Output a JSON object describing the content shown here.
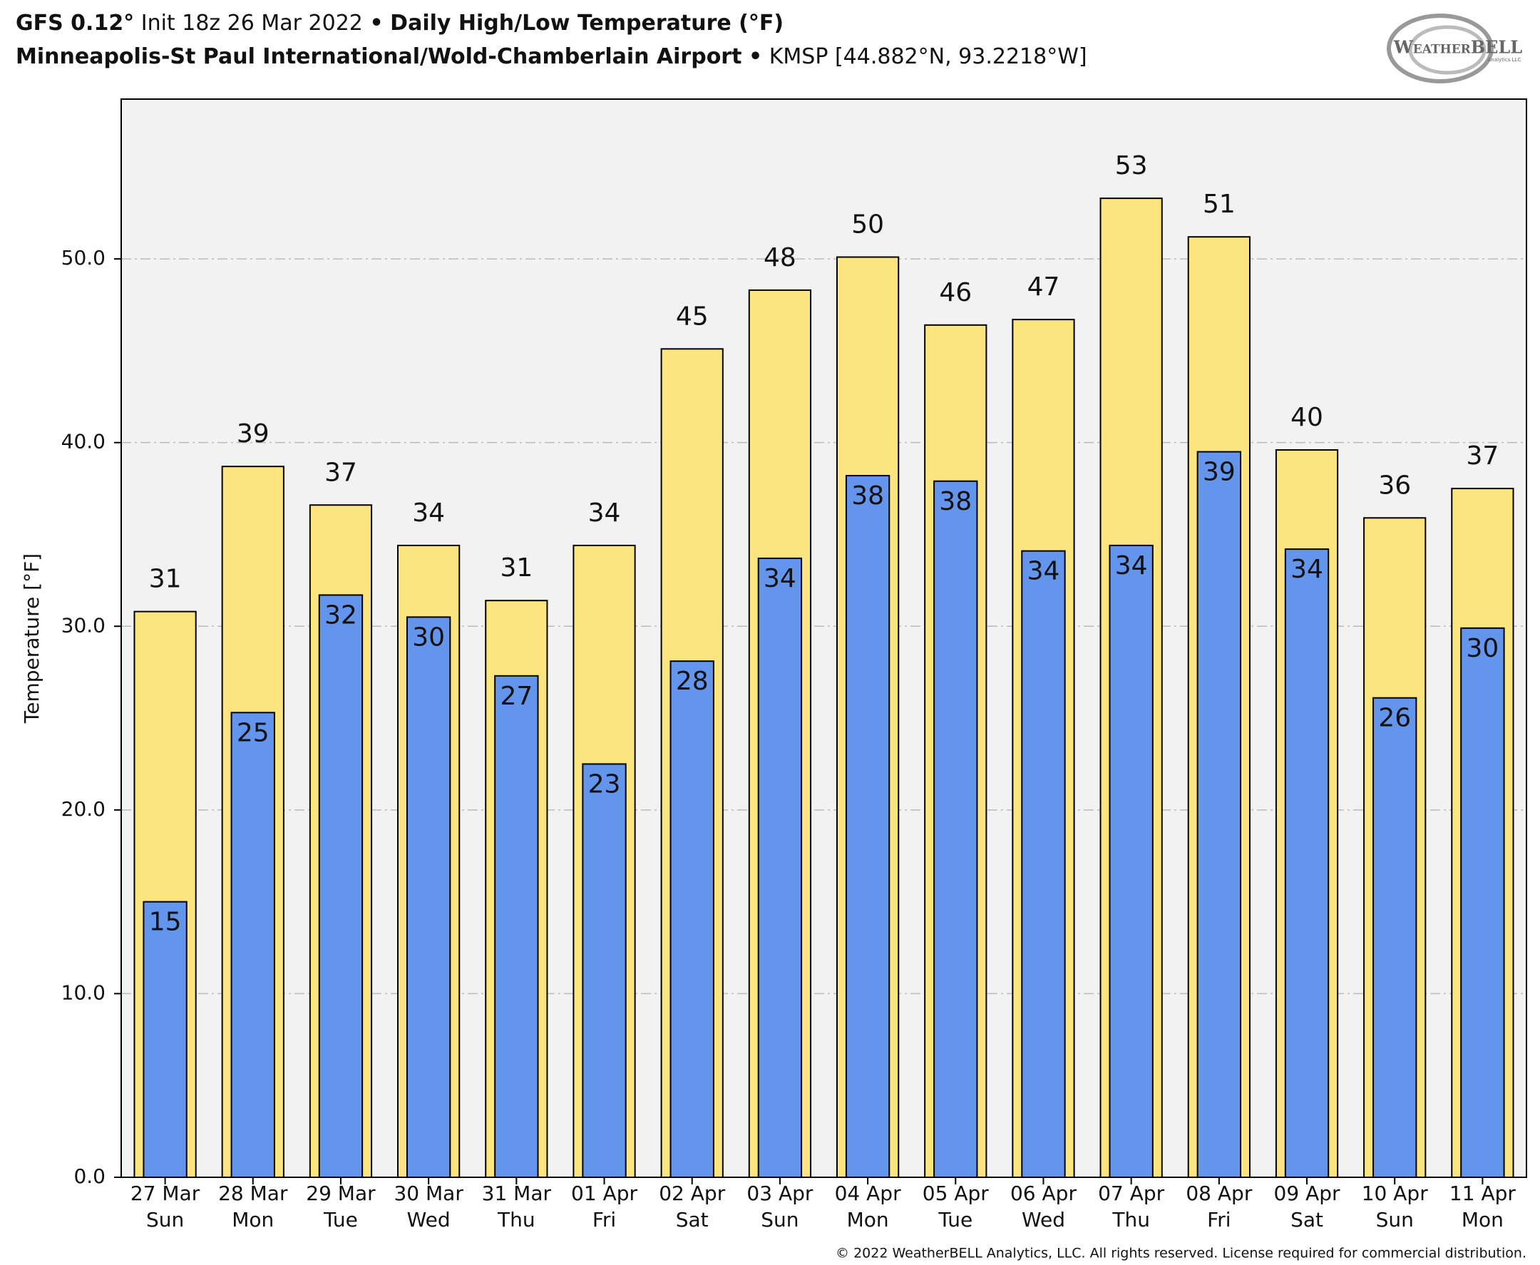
{
  "chart_data": {
    "type": "bar",
    "title": {
      "model": "GFS 0.12°",
      "init": "Init 18z 26 Mar 2022",
      "separator": "•",
      "product": "Daily High/Low Temperature (°F)"
    },
    "subtitle": {
      "station": "Minneapolis-St Paul International/Wold-Chamberlain Airport",
      "location": "KMSP [44.882°N, 93.2218°W]"
    },
    "logo": "WeatherBELL",
    "logo_sub": "Analytics LLC",
    "copyright": "© 2022 WeatherBELL Analytics, LLC. All rights reserved. License required for commercial distribution.",
    "y_label": "Temperature [°F]",
    "categories": [
      "27 Mar",
      "28 Mar",
      "29 Mar",
      "30 Mar",
      "31 Mar",
      "01 Apr",
      "02 Apr",
      "03 Apr",
      "04 Apr",
      "05 Apr",
      "06 Apr",
      "07 Apr",
      "08 Apr",
      "09 Apr",
      "10 Apr",
      "11 Apr"
    ],
    "weekdays": [
      "Sun",
      "Mon",
      "Tue",
      "Wed",
      "Thu",
      "Fri",
      "Sat",
      "Sun",
      "Mon",
      "Tue",
      "Wed",
      "Thu",
      "Fri",
      "Sat",
      "Sun",
      "Mon"
    ],
    "series": [
      {
        "name": "High",
        "color": "#fce47e",
        "values": [
          30.8,
          38.7,
          36.6,
          34.4,
          31.4,
          34.4,
          45.1,
          48.3,
          50.1,
          46.4,
          46.7,
          53.3,
          51.2,
          39.6,
          35.9,
          37.5
        ],
        "value_labels": [
          "31",
          "39",
          "37",
          "34",
          "31",
          "34",
          "45",
          "48",
          "50",
          "46",
          "47",
          "53",
          "51",
          "40",
          "36",
          "37"
        ]
      },
      {
        "name": "Low",
        "color": "#6495ed",
        "values": [
          15.0,
          25.3,
          31.7,
          30.5,
          27.3,
          22.5,
          28.1,
          33.7,
          38.2,
          37.9,
          34.1,
          34.4,
          39.5,
          34.2,
          26.1,
          29.9
        ],
        "value_labels": [
          "15",
          "25",
          "32",
          "30",
          "27",
          "23",
          "28",
          "34",
          "38",
          "38",
          "34",
          "34",
          "39",
          "34",
          "26",
          "30"
        ]
      }
    ],
    "ylim": [
      0,
      58.7
    ],
    "yticks": [
      {
        "value": 0,
        "label": "0.0"
      },
      {
        "value": 10,
        "label": "10.0"
      },
      {
        "value": 20,
        "label": "20.0"
      },
      {
        "value": 30,
        "label": "30.0"
      },
      {
        "value": 40,
        "label": "40.0"
      },
      {
        "value": 50,
        "label": "50.0"
      }
    ],
    "grid": true
  }
}
